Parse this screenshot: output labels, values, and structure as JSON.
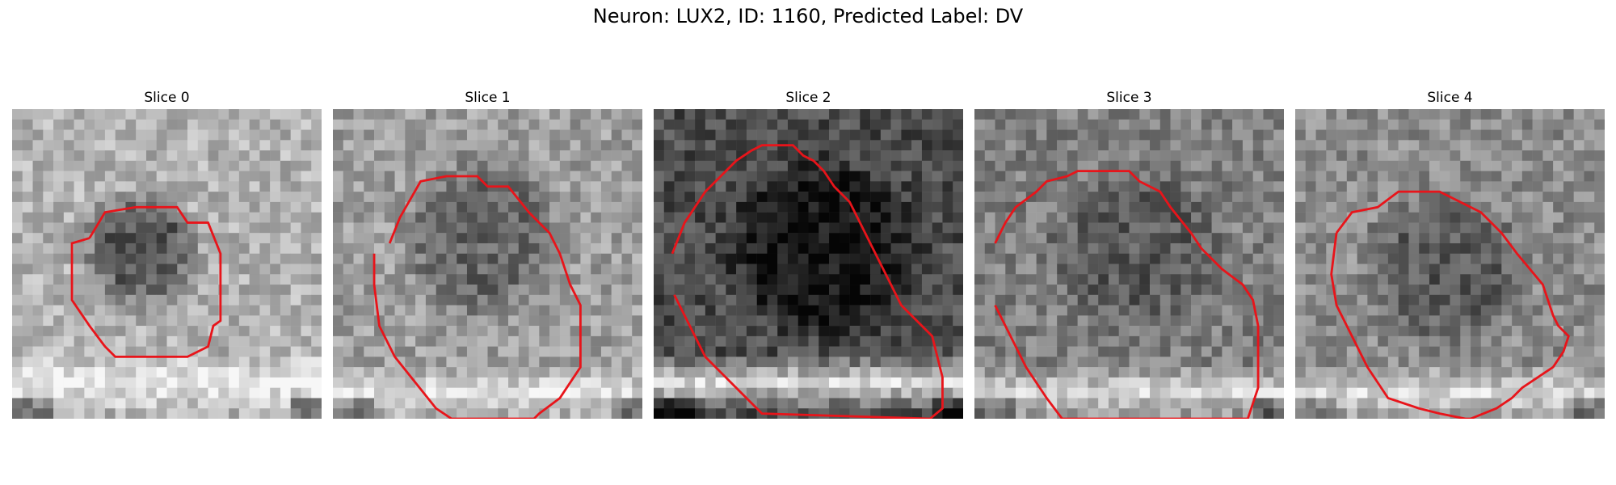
{
  "figure": {
    "title": "Neuron: LUX2, ID: 1160, Predicted Label: DV"
  },
  "panels": [
    {
      "title": "Slice 0"
    },
    {
      "title": "Slice 1"
    },
    {
      "title": "Slice 2"
    },
    {
      "title": "Slice 3"
    },
    {
      "title": "Slice 4"
    }
  ],
  "colors": {
    "contour": "#e8141a"
  }
}
